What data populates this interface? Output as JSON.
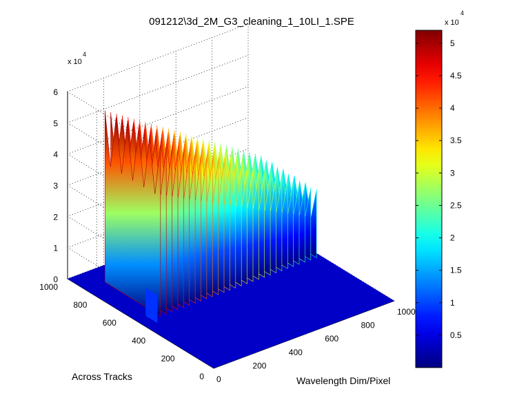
{
  "chart_data": {
    "type": "surface",
    "title": "091212\\3d_2M_G3_cleaning_1_10LI_1.SPE",
    "xlabel": "Wavelength Dim/Pixel",
    "ylabel": "Across Tracks",
    "zlabel": "",
    "xlim": [
      0,
      1000
    ],
    "ylim": [
      0,
      1000
    ],
    "zlim": [
      0,
      60000
    ],
    "x_ticks": [
      "0",
      "200",
      "400",
      "600",
      "800",
      "1000"
    ],
    "y_ticks": [
      "0",
      "200",
      "400",
      "600",
      "800",
      "1000"
    ],
    "z_ticks": [
      "0",
      "1",
      "2",
      "3",
      "4",
      "5",
      "6"
    ],
    "z_exponent_base": "x 10",
    "z_exponent_power": "4",
    "grid": true,
    "colormap": "jet",
    "colorbar": {
      "ticks": [
        "0.5",
        "1",
        "1.5",
        "2",
        "2.5",
        "3",
        "3.5",
        "4",
        "4.5",
        "5"
      ],
      "exponent_base": "x 10",
      "exponent_power": "4",
      "clim": [
        0,
        52000
      ]
    },
    "peaks": {
      "x_start": 110,
      "x_step": 32,
      "count": 28,
      "y_ridge_start": 500,
      "y_ridge_end": 880,
      "z_start_max": 55000,
      "z_end_max": 22000,
      "z_start_min": 38000,
      "z_end_min": 12000
    },
    "small_bump": {
      "x": 0,
      "y": 500,
      "z": 9000
    }
  }
}
